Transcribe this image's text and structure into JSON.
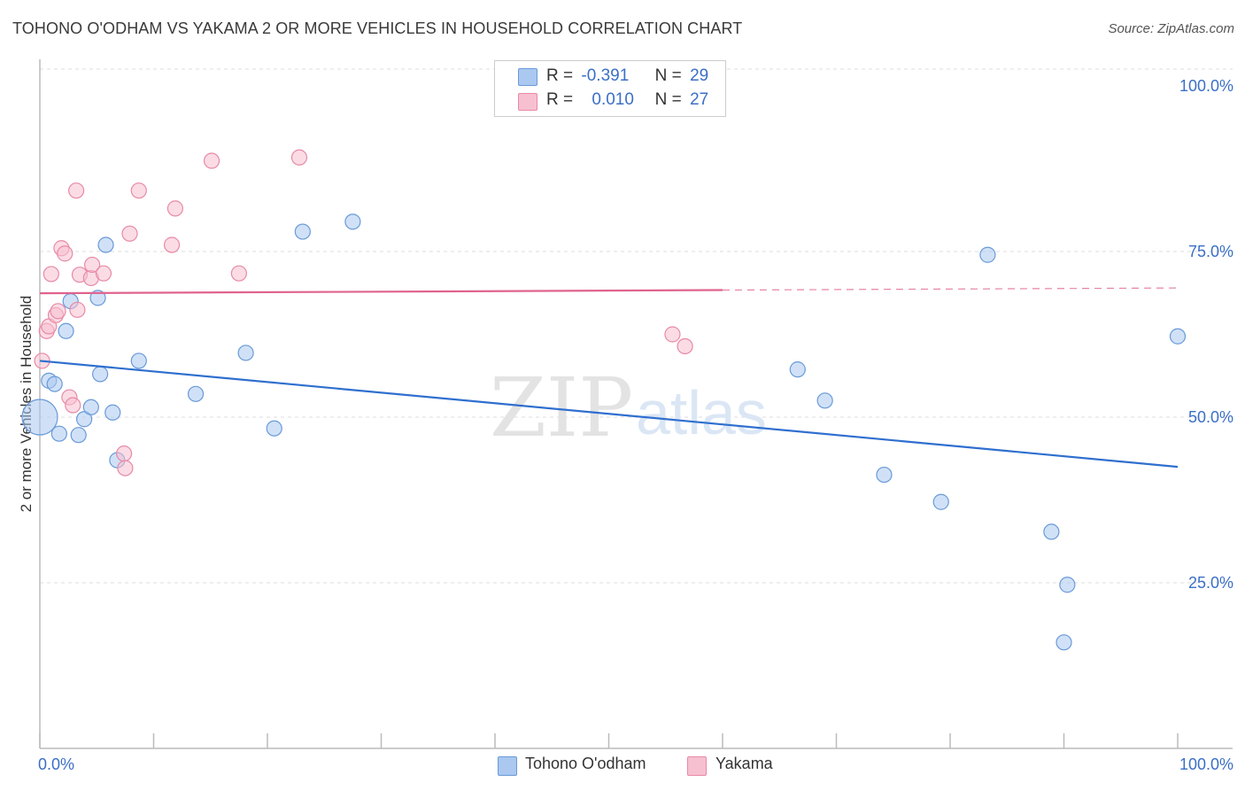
{
  "title": "TOHONO O'ODHAM VS YAKAMA 2 OR MORE VEHICLES IN HOUSEHOLD CORRELATION CHART",
  "source": "Source: ZipAtlas.com",
  "watermark": {
    "zip": "ZIP",
    "atlas": "atlas"
  },
  "legend": {
    "rows": [
      {
        "r_label": "R =",
        "r_value": "-0.391",
        "n_label": "N =",
        "n_value": "29",
        "color": "#aac8f0",
        "border": "#6a9ad8"
      },
      {
        "r_label": "R =",
        "r_value": "0.010",
        "n_label": "N =",
        "n_value": "27",
        "color": "#f7c0d0",
        "border": "#e88aa6"
      }
    ]
  },
  "bottom_legend": [
    {
      "label": "Tohono O'odham",
      "color": "#aac8f0",
      "border": "#6a9ad8"
    },
    {
      "label": "Yakama",
      "color": "#f7c0d0",
      "border": "#e88aa6"
    }
  ],
  "chart_data": {
    "type": "scatter",
    "title": "TOHONO O'ODHAM VS YAKAMA 2 OR MORE VEHICLES IN HOUSEHOLD CORRELATION CHART",
    "xlabel": "",
    "ylabel": "2 or more Vehicles in Household",
    "xlim": [
      0,
      100
    ],
    "ylim": [
      0,
      102
    ],
    "x_tick_labels": [
      "0.0%",
      "100.0%"
    ],
    "y_ticks": [
      {
        "value": 25,
        "label": "25.0%"
      },
      {
        "value": 50,
        "label": "50.0%"
      },
      {
        "value": 75,
        "label": "75.0%"
      },
      {
        "value": 100,
        "label": "100.0%"
      }
    ],
    "grid": true,
    "series": [
      {
        "name": "Tohono O'odham",
        "color": "#aac8f0",
        "stroke": "#6a9ad8",
        "line_color": "#2f6fcf",
        "trend": {
          "x0": 0,
          "y0": 58.5,
          "x1": 100,
          "y1": 42.5,
          "dash_from": 100
        },
        "points": [
          {
            "x": 0.0,
            "y": 50.0,
            "big": true
          },
          {
            "x": 0.8,
            "y": 55.5
          },
          {
            "x": 1.3,
            "y": 55.0
          },
          {
            "x": 1.7,
            "y": 47.5
          },
          {
            "x": 2.3,
            "y": 63.0
          },
          {
            "x": 2.7,
            "y": 67.5
          },
          {
            "x": 3.4,
            "y": 47.3
          },
          {
            "x": 3.9,
            "y": 49.7
          },
          {
            "x": 4.5,
            "y": 51.5
          },
          {
            "x": 5.1,
            "y": 68.0
          },
          {
            "x": 5.3,
            "y": 56.5
          },
          {
            "x": 5.8,
            "y": 76.0
          },
          {
            "x": 6.4,
            "y": 50.7
          },
          {
            "x": 6.8,
            "y": 43.5
          },
          {
            "x": 8.7,
            "y": 58.5
          },
          {
            "x": 13.7,
            "y": 53.5
          },
          {
            "x": 18.1,
            "y": 59.7
          },
          {
            "x": 20.6,
            "y": 48.3
          },
          {
            "x": 23.1,
            "y": 78.0
          },
          {
            "x": 27.5,
            "y": 79.5
          },
          {
            "x": 66.6,
            "y": 57.2
          },
          {
            "x": 69.0,
            "y": 52.5
          },
          {
            "x": 74.2,
            "y": 41.3
          },
          {
            "x": 79.2,
            "y": 37.2
          },
          {
            "x": 83.3,
            "y": 74.5
          },
          {
            "x": 88.9,
            "y": 32.7
          },
          {
            "x": 90.0,
            "y": 16.0
          },
          {
            "x": 90.3,
            "y": 24.7
          },
          {
            "x": 100.0,
            "y": 62.2
          }
        ]
      },
      {
        "name": "Yakama",
        "color": "#f7c0d0",
        "stroke": "#e88aa6",
        "line_color": "#e0638e",
        "trend": {
          "x0": 0,
          "y0": 68.7,
          "x1": 100,
          "y1": 69.5,
          "dash_from": 60
        },
        "points": [
          {
            "x": 0.2,
            "y": 58.5
          },
          {
            "x": 0.6,
            "y": 63.0
          },
          {
            "x": 0.8,
            "y": 63.7
          },
          {
            "x": 1.0,
            "y": 71.6
          },
          {
            "x": 1.4,
            "y": 65.4
          },
          {
            "x": 1.6,
            "y": 66.0
          },
          {
            "x": 1.9,
            "y": 75.5
          },
          {
            "x": 2.2,
            "y": 74.7
          },
          {
            "x": 2.6,
            "y": 53.0
          },
          {
            "x": 2.9,
            "y": 51.8
          },
          {
            "x": 3.2,
            "y": 84.2
          },
          {
            "x": 3.3,
            "y": 66.2
          },
          {
            "x": 3.5,
            "y": 71.5
          },
          {
            "x": 4.5,
            "y": 71.0
          },
          {
            "x": 4.6,
            "y": 73.0
          },
          {
            "x": 5.6,
            "y": 71.7
          },
          {
            "x": 7.4,
            "y": 44.5
          },
          {
            "x": 7.5,
            "y": 42.3
          },
          {
            "x": 7.9,
            "y": 77.7
          },
          {
            "x": 8.7,
            "y": 84.2
          },
          {
            "x": 11.9,
            "y": 81.5
          },
          {
            "x": 11.6,
            "y": 76.0
          },
          {
            "x": 15.1,
            "y": 88.7
          },
          {
            "x": 17.5,
            "y": 71.7
          },
          {
            "x": 22.8,
            "y": 89.2
          },
          {
            "x": 55.6,
            "y": 62.5
          },
          {
            "x": 56.7,
            "y": 60.7
          }
        ]
      }
    ]
  }
}
